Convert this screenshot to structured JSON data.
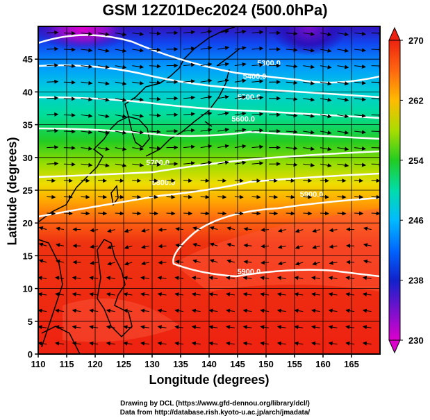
{
  "title": "GSM 12Z01Dec2024 (500.0hPa)",
  "xlabel": "Longitude (degrees)",
  "ylabel": "Latitude  (degrees)",
  "credits": [
    "Drawing by DCL (https://www.gfd-dennou.org/library/dcl/)",
    "Data from http://database.rish.kyoto-u.ac.jp/arch/jmadata/"
  ],
  "map": {
    "lon_range": [
      110,
      170
    ],
    "lat_range": [
      0,
      50
    ],
    "lon_ticks": [
      110,
      115,
      120,
      125,
      130,
      135,
      140,
      145,
      150,
      155,
      160,
      165
    ],
    "lat_ticks": [
      0,
      5,
      10,
      15,
      20,
      25,
      30,
      35,
      40,
      45
    ],
    "colorbar": {
      "min": 230,
      "max": 270,
      "labels": [
        230,
        238,
        246,
        254,
        262,
        270
      ],
      "colors": [
        "#cc00cc",
        "#2200cc",
        "#0066ff",
        "#00ccff",
        "#00ddaa",
        "#00cc44",
        "#66dd00",
        "#dddd00",
        "#ffaa00",
        "#ff6600",
        "#ee2200"
      ]
    },
    "contours": [
      {
        "label": "5300.0",
        "label_lon": 150.5,
        "label_lat": 44.0
      },
      {
        "label": "5400.0",
        "label_lon": 148.0,
        "label_lat": 42.0
      },
      {
        "label": "5500.0",
        "label_lon": 147.0,
        "label_lat": 38.8
      },
      {
        "label": "5600.0",
        "label_lon": 146.0,
        "label_lat": 35.5
      },
      {
        "label": "5700.0",
        "label_lon": 131.0,
        "label_lat": 28.8
      },
      {
        "label": "5800.0",
        "label_lon": 132.0,
        "label_lat": 25.8
      },
      {
        "label": "5900.0",
        "label_lon": 158.0,
        "label_lat": 24.0
      },
      {
        "label": "5900.0",
        "label_lon": 147.0,
        "label_lat": 12.2
      }
    ]
  }
}
